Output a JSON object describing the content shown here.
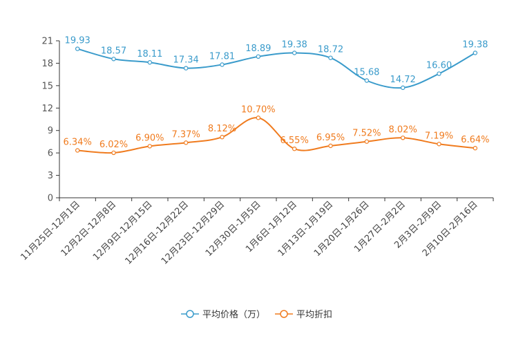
{
  "chart_data": {
    "type": "line",
    "title": "",
    "xlabel": "",
    "ylabel": "",
    "ylim": [
      0,
      21
    ],
    "yticks": [
      0,
      3,
      6,
      9,
      12,
      15,
      18,
      21
    ],
    "categories": [
      "11月25日-12月1日",
      "12月2日-12月8日",
      "12月9日-12月15日",
      "12月16日-12月22日",
      "12月23日-12月29日",
      "12月30日-1月5日",
      "1月6日-1月12日",
      "1月13日-1月19日",
      "1月20日-1月26日",
      "1月27日-2月2日",
      "2月3日-2月9日",
      "2月10日-2月16日"
    ],
    "series": [
      {
        "name": "平均价格（万）",
        "color": "#3a9bcb",
        "values": [
          19.93,
          18.57,
          18.11,
          17.34,
          17.81,
          18.89,
          19.38,
          18.72,
          15.68,
          14.72,
          16.6,
          19.38
        ],
        "labels": [
          "19.93",
          "18.57",
          "18.11",
          "17.34",
          "17.81",
          "18.89",
          "19.38",
          "18.72",
          "15.68",
          "14.72",
          "16.60",
          "19.38"
        ]
      },
      {
        "name": "平均折扣",
        "color": "#f07b1e",
        "values": [
          6.34,
          6.02,
          6.9,
          7.37,
          8.12,
          10.7,
          6.55,
          6.95,
          7.52,
          8.02,
          7.19,
          6.64
        ],
        "labels": [
          "6.34%",
          "6.02%",
          "6.90%",
          "7.37%",
          "8.12%",
          "10.70%",
          "6.55%",
          "6.95%",
          "7.52%",
          "8.02%",
          "7.19%",
          "6.64%"
        ]
      }
    ],
    "legend_position": "bottom-center"
  }
}
